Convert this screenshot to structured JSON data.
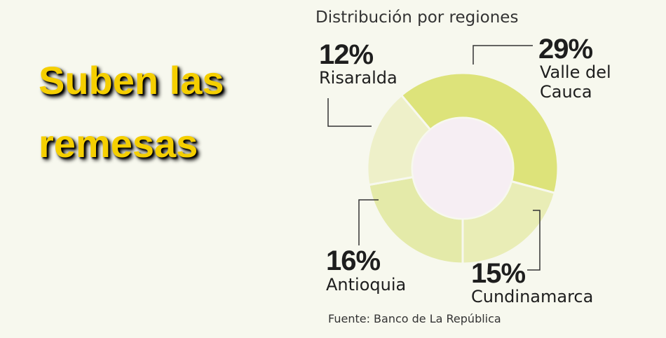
{
  "chart_data": {
    "type": "donut",
    "title": "Suben las remesas",
    "subtitle": "Distribución por regiones",
    "source": "Fuente: Banco de La República",
    "categories": [
      "Valle del Cauca",
      "Cundinamarca",
      "Antioquia",
      "Risaralda"
    ],
    "values": [
      29,
      15,
      16,
      12
    ],
    "value_labels": [
      "29%",
      "15%",
      "16%",
      "12%"
    ],
    "colors": [
      "#dde37a",
      "#e9edb6",
      "#e4eaa9",
      "#eef0c9"
    ]
  }
}
